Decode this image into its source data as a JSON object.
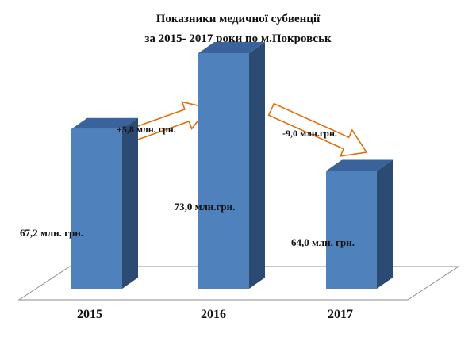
{
  "chart_data": {
    "type": "bar",
    "title_line1": "Показники медичної субвенції",
    "title_line2": "за 2015- 2017 роки  по  м.Покровськ",
    "categories": [
      "2015",
      "2016",
      "2017"
    ],
    "values": [
      67.2,
      73.0,
      64.0
    ],
    "value_labels": [
      "67,2 млн. грн.",
      "73,0 млн.грн.",
      "64,0 млн. грн."
    ],
    "changes": [
      {
        "label": "+5,8 млн. грн.",
        "direction": "up"
      },
      {
        "label": "-9,0 млн.грн.",
        "direction": "down"
      }
    ],
    "ylim": [
      55,
      75
    ],
    "grid": false,
    "legend": "none",
    "style": "3d-column"
  },
  "colors": {
    "bar_front": "#4f81bd",
    "bar_side": "#2b4b73",
    "bar_top": "#3a639b",
    "floor_stroke": "#8c8c8c",
    "arrow_stroke": "#e46c0a",
    "arrow_fill": "#ffffff"
  }
}
